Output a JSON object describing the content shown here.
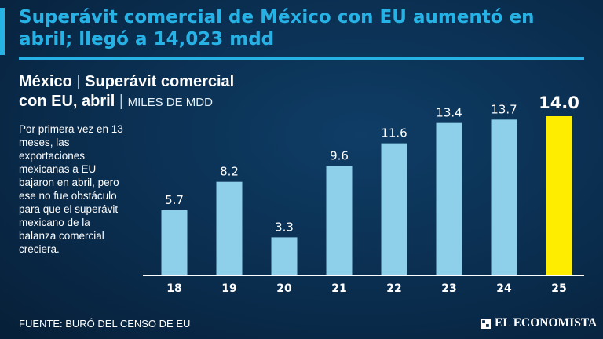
{
  "headline": "Superávit comercial de México con  EU aumentó en abril; llegó a 14,023 mdd",
  "chart_title": {
    "line1": "México",
    "sep": "|",
    "line1b": "Superávit comercial",
    "line2": "con EU, abril",
    "units": "MILES DE MDD"
  },
  "note": "Por primera vez en 13 meses, las exportaciones mexicanas a EU bajaron en abril, pero ese no fue obstáculo para que el superávit mexicano de la balanza comercial creciera.",
  "source": "FUENTE: BURÓ DEL CENSO DE EU",
  "brand": "EL ECONOMISTA",
  "colors": {
    "accent": "#27b2e6",
    "bar": "#8ecfe9",
    "highlight": "#ffed00"
  },
  "chart_data": {
    "type": "bar",
    "title": "México | Superávit comercial con EU, abril",
    "ylabel": "MILES DE MDD",
    "xlabel": "",
    "categories": [
      "18",
      "19",
      "20",
      "21",
      "22",
      "23",
      "24",
      "25"
    ],
    "values": [
      5.7,
      8.2,
      3.3,
      9.6,
      11.6,
      13.4,
      13.7,
      14.0
    ],
    "value_labels": [
      "5.7",
      "8.2",
      "3.3",
      "9.6",
      "11.6",
      "13.4",
      "13.7",
      "14.0"
    ],
    "highlight_index": 7,
    "ylim": [
      0,
      14.0
    ],
    "grid": false
  }
}
